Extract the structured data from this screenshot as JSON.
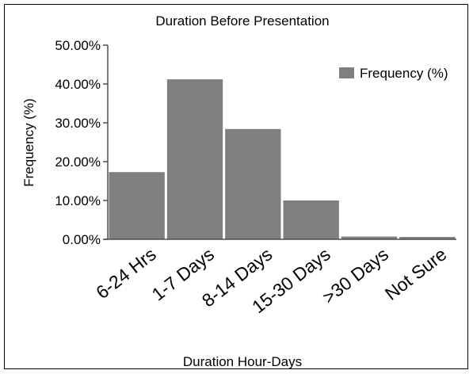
{
  "chart_data": {
    "type": "bar",
    "title": "Duration Before Presentation",
    "xlabel": "Duration Hour-Days",
    "ylabel": "Frequency (%)",
    "categories": [
      "6-24 Hrs",
      "1-7 Days",
      "8-14 Days",
      "15-30 Days",
      ">30 Days",
      "Not Sure"
    ],
    "series": [
      {
        "name": "Frequency (%)",
        "values": [
          17.3,
          41.2,
          28.4,
          10.0,
          0.7,
          0.6
        ]
      }
    ],
    "ylim": [
      0,
      50
    ],
    "yticks": [
      "0.00%",
      "10.00%",
      "20.00%",
      "30.00%",
      "40.00%",
      "50.00%"
    ],
    "ytick_values": [
      0,
      10,
      20,
      30,
      40,
      50
    ],
    "grid": false,
    "legend_position": "top-right",
    "bar_color": "#7f7f7f"
  }
}
